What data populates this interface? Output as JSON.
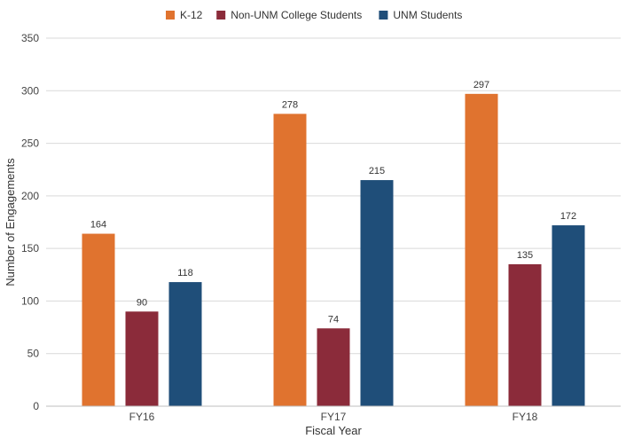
{
  "chart_data": {
    "type": "bar",
    "title": "",
    "xlabel": "Fiscal Year",
    "ylabel": "Number of Engagements",
    "categories": [
      "FY16",
      "FY17",
      "FY18"
    ],
    "series": [
      {
        "name": "K-12",
        "values": [
          164,
          278,
          297
        ],
        "color": "#E0732F"
      },
      {
        "name": "Non-UNM College Students",
        "values": [
          90,
          74,
          135
        ],
        "color": "#8B2B3A"
      },
      {
        "name": "UNM Students",
        "values": [
          118,
          215,
          172
        ],
        "color": "#1F4E79"
      }
    ],
    "ylim": [
      0,
      350
    ],
    "yticks": [
      0,
      50,
      100,
      150,
      200,
      250,
      300,
      350
    ],
    "grid": true,
    "legend_position": "top-center"
  }
}
